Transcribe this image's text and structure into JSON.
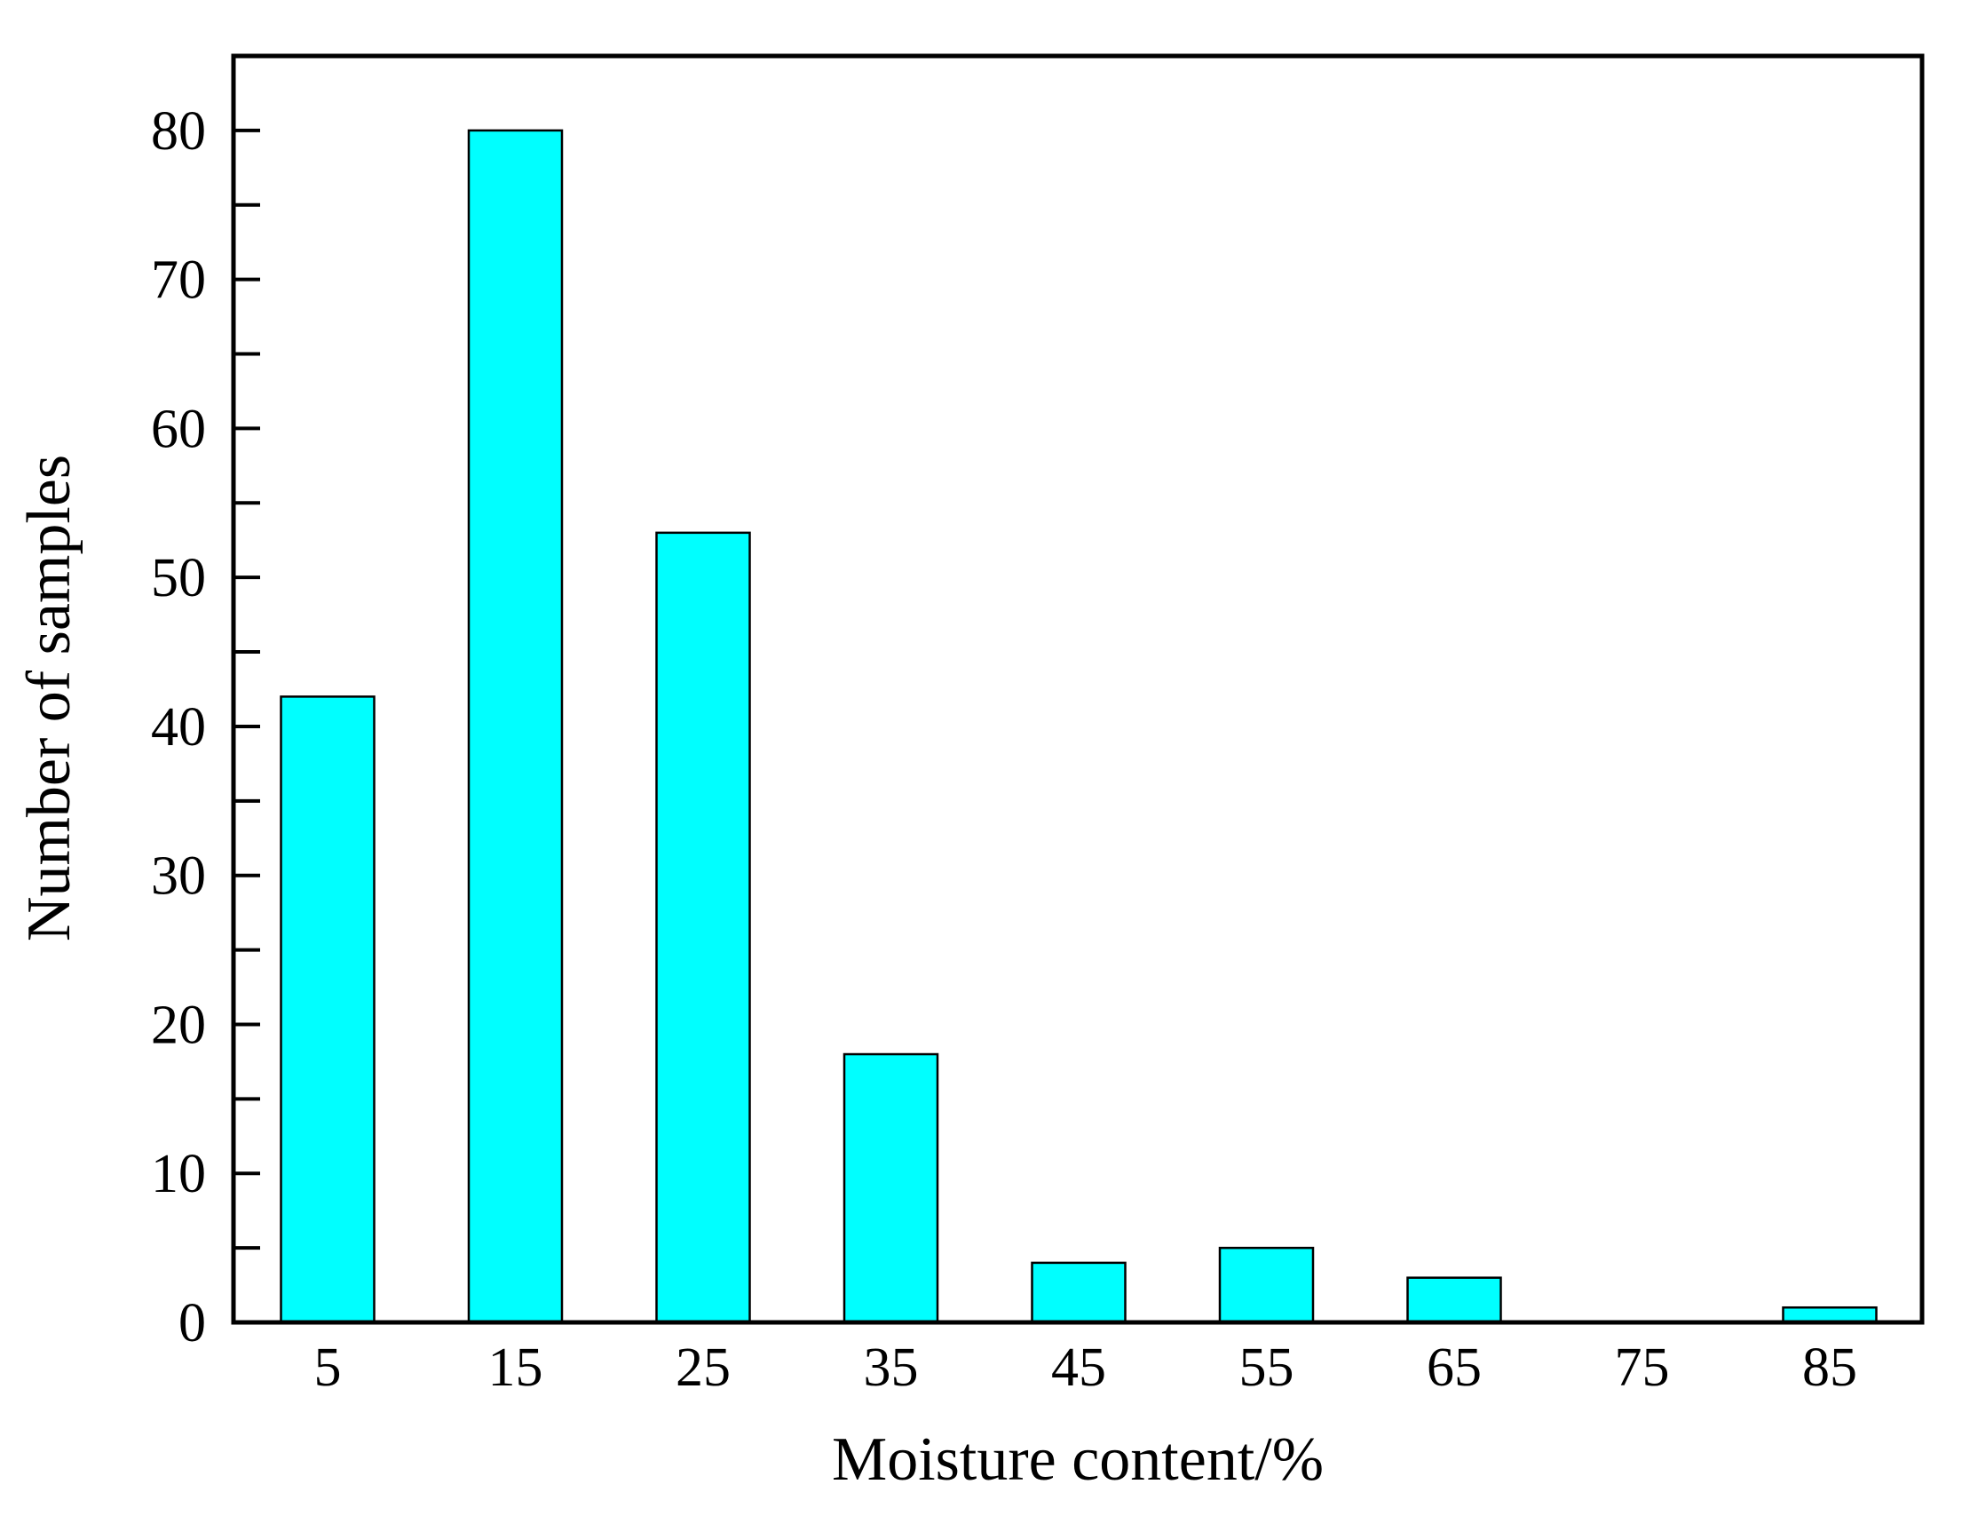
{
  "chart_data": {
    "type": "bar",
    "title": "",
    "xlabel": "Moisture content/%",
    "ylabel": "Number of samples",
    "categories": [
      "5",
      "15",
      "25",
      "35",
      "45",
      "55",
      "65",
      "75",
      "85"
    ],
    "values": [
      42,
      80,
      53,
      18,
      4,
      5,
      3,
      0,
      1
    ],
    "ylim": [
      0,
      85
    ],
    "yticks": [
      0,
      10,
      20,
      30,
      40,
      50,
      60,
      70,
      80
    ],
    "y_minor_step": 5,
    "grid": false,
    "legend": "none",
    "colors": {
      "bar_fill": "#00ffff",
      "bar_stroke": "#000000",
      "axis": "#000000",
      "background": "#ffffff"
    }
  }
}
